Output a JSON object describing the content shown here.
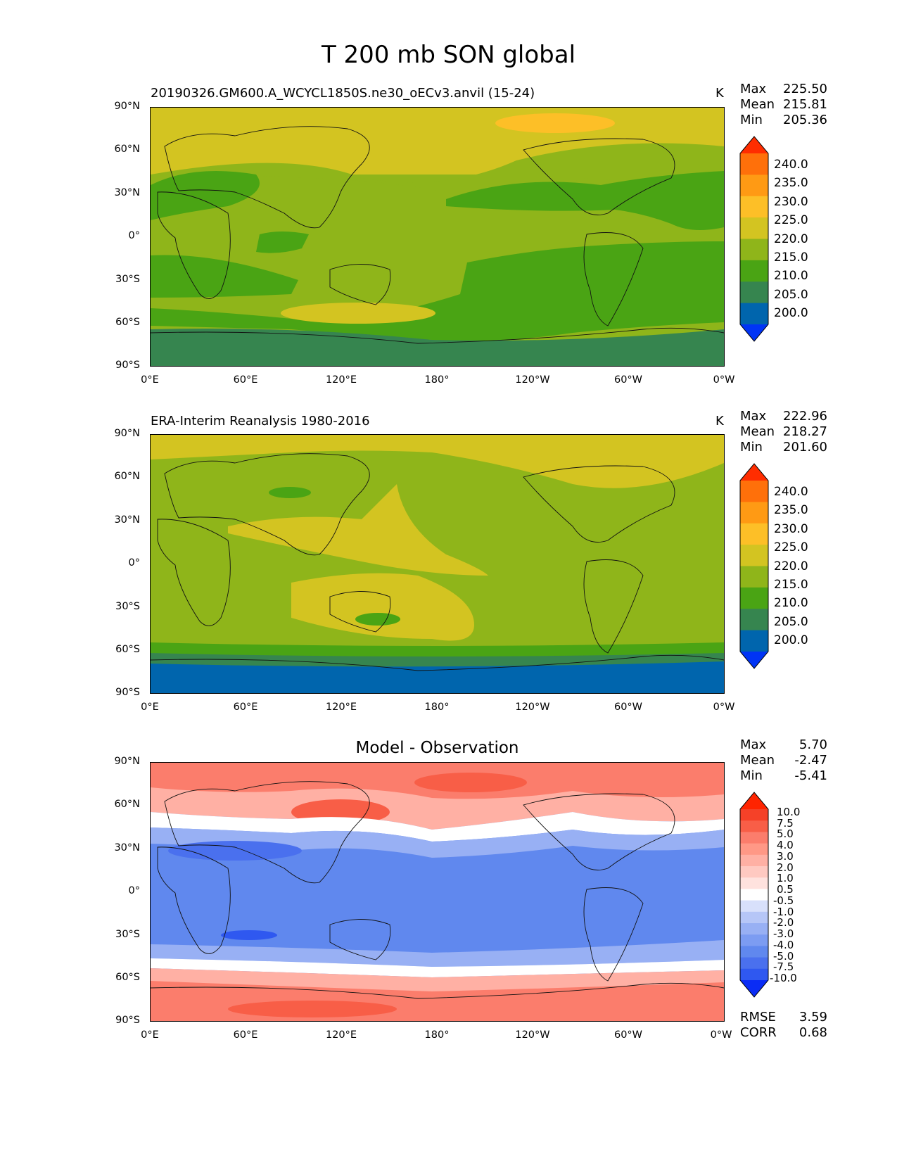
{
  "figure_title": "T 200 mb SON global",
  "chart_data": [
    {
      "type": "heatmap",
      "panel": "test",
      "title": "20190326.GM600.A_WCYCL1850S.ne30_oECv3.anvil (15-24)",
      "units": "K",
      "stats": {
        "max_label": "Max",
        "max": "225.50",
        "mean_label": "Mean",
        "mean": "215.81",
        "min_label": "Min",
        "min": "205.36"
      },
      "x_ticks": [
        "0°E",
        "60°E",
        "120°E",
        "180°",
        "120°W",
        "60°W",
        "0°W"
      ],
      "y_ticks": [
        "90°N",
        "60°N",
        "30°N",
        "0°",
        "30°S",
        "60°S",
        "90°S"
      ],
      "levels": [
        200.0,
        205.0,
        210.0,
        215.0,
        220.0,
        225.0,
        230.0,
        235.0,
        240.0
      ],
      "colorbar_labels": [
        "240.0",
        "235.0",
        "230.0",
        "225.0",
        "220.0",
        "215.0",
        "210.0",
        "205.0",
        "200.0"
      ],
      "colorbar_colors": [
        "#0034f5",
        "#0065ad",
        "#36854f",
        "#4aa414",
        "#8fb51a",
        "#d3c421",
        "#fdbf27",
        "#ff9a14",
        "#ff700a",
        "#ff2d00"
      ]
    },
    {
      "type": "heatmap",
      "panel": "reference",
      "title": "ERA-Interim Reanalysis 1980-2016",
      "units": "K",
      "stats": {
        "max_label": "Max",
        "max": "222.96",
        "mean_label": "Mean",
        "mean": "218.27",
        "min_label": "Min",
        "min": "201.60"
      },
      "x_ticks": [
        "0°E",
        "60°E",
        "120°E",
        "180°",
        "120°W",
        "60°W",
        "0°W"
      ],
      "y_ticks": [
        "90°N",
        "60°N",
        "30°N",
        "0°",
        "30°S",
        "60°S",
        "90°S"
      ],
      "levels": [
        200.0,
        205.0,
        210.0,
        215.0,
        220.0,
        225.0,
        230.0,
        235.0,
        240.0
      ],
      "colorbar_labels": [
        "240.0",
        "235.0",
        "230.0",
        "225.0",
        "220.0",
        "215.0",
        "210.0",
        "205.0",
        "200.0"
      ],
      "colorbar_colors": [
        "#0034f5",
        "#0065ad",
        "#36854f",
        "#4aa414",
        "#8fb51a",
        "#d3c421",
        "#fdbf27",
        "#ff9a14",
        "#ff700a",
        "#ff2d00"
      ]
    },
    {
      "type": "heatmap",
      "panel": "difference",
      "title": "Model - Observation",
      "units": "",
      "stats": {
        "max_label": "Max",
        "max": "5.70",
        "mean_label": "Mean",
        "mean": "-2.47",
        "min_label": "Min",
        "min": "-5.41"
      },
      "metrics": {
        "rmse_label": "RMSE",
        "rmse": "3.59",
        "corr_label": "CORR",
        "corr": "0.68"
      },
      "x_ticks": [
        "0°E",
        "60°E",
        "120°E",
        "180°",
        "120°W",
        "60°W",
        "0°W"
      ],
      "y_ticks": [
        "90°N",
        "60°N",
        "30°N",
        "0°",
        "30°S",
        "60°S",
        "90°S"
      ],
      "levels": [
        -10.0,
        -7.5,
        -5.0,
        -4.0,
        -3.0,
        -2.0,
        -1.0,
        -0.5,
        0.5,
        1.0,
        2.0,
        3.0,
        4.0,
        5.0,
        7.5,
        10.0
      ],
      "colorbar_labels": [
        "10.0",
        "7.5",
        "5.0",
        "4.0",
        "3.0",
        "2.0",
        "1.0",
        "0.5",
        "-0.5",
        "-1.0",
        "-2.0",
        "-3.0",
        "-4.0",
        "-5.0",
        "-7.5",
        "-10.0"
      ],
      "colorbar_colors": [
        "#0a2cf5",
        "#2f58f0",
        "#4a70ee",
        "#6088ee",
        "#7c9cf2",
        "#98b0f4",
        "#b6c6f7",
        "#d8e0fb",
        "#ffffff",
        "#ffe2de",
        "#ffc9c1",
        "#ffb0a4",
        "#ff9886",
        "#fb7d6c",
        "#f85e47",
        "#f54128",
        "#ff2400"
      ]
    }
  ]
}
